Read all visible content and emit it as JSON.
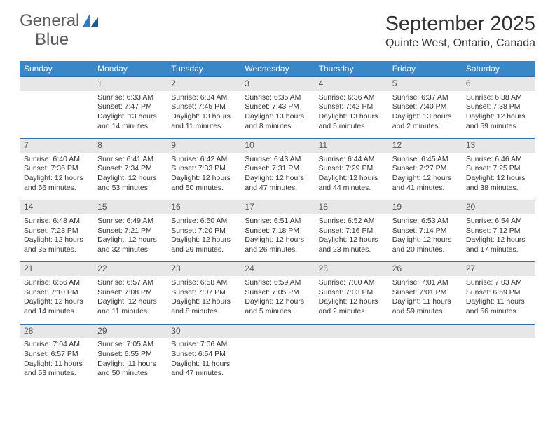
{
  "logo": {
    "word1": "General",
    "word2": "Blue",
    "text_color": "#5b5b5b",
    "accent_color": "#2d7dc0"
  },
  "title": {
    "month": "September 2025",
    "location": "Quinte West, Ontario, Canada"
  },
  "calendar": {
    "header_bg": "#3a87c8",
    "header_text": "#ffffff",
    "daynum_bg": "#e7e7e7",
    "border_color": "#3a6ea5",
    "dow": [
      "Sunday",
      "Monday",
      "Tuesday",
      "Wednesday",
      "Thursday",
      "Friday",
      "Saturday"
    ],
    "weeks": [
      [
        {
          "n": "",
          "sr": "",
          "ss": "",
          "dl": ""
        },
        {
          "n": "1",
          "sr": "Sunrise: 6:33 AM",
          "ss": "Sunset: 7:47 PM",
          "dl": "Daylight: 13 hours and 14 minutes."
        },
        {
          "n": "2",
          "sr": "Sunrise: 6:34 AM",
          "ss": "Sunset: 7:45 PM",
          "dl": "Daylight: 13 hours and 11 minutes."
        },
        {
          "n": "3",
          "sr": "Sunrise: 6:35 AM",
          "ss": "Sunset: 7:43 PM",
          "dl": "Daylight: 13 hours and 8 minutes."
        },
        {
          "n": "4",
          "sr": "Sunrise: 6:36 AM",
          "ss": "Sunset: 7:42 PM",
          "dl": "Daylight: 13 hours and 5 minutes."
        },
        {
          "n": "5",
          "sr": "Sunrise: 6:37 AM",
          "ss": "Sunset: 7:40 PM",
          "dl": "Daylight: 13 hours and 2 minutes."
        },
        {
          "n": "6",
          "sr": "Sunrise: 6:38 AM",
          "ss": "Sunset: 7:38 PM",
          "dl": "Daylight: 12 hours and 59 minutes."
        }
      ],
      [
        {
          "n": "7",
          "sr": "Sunrise: 6:40 AM",
          "ss": "Sunset: 7:36 PM",
          "dl": "Daylight: 12 hours and 56 minutes."
        },
        {
          "n": "8",
          "sr": "Sunrise: 6:41 AM",
          "ss": "Sunset: 7:34 PM",
          "dl": "Daylight: 12 hours and 53 minutes."
        },
        {
          "n": "9",
          "sr": "Sunrise: 6:42 AM",
          "ss": "Sunset: 7:33 PM",
          "dl": "Daylight: 12 hours and 50 minutes."
        },
        {
          "n": "10",
          "sr": "Sunrise: 6:43 AM",
          "ss": "Sunset: 7:31 PM",
          "dl": "Daylight: 12 hours and 47 minutes."
        },
        {
          "n": "11",
          "sr": "Sunrise: 6:44 AM",
          "ss": "Sunset: 7:29 PM",
          "dl": "Daylight: 12 hours and 44 minutes."
        },
        {
          "n": "12",
          "sr": "Sunrise: 6:45 AM",
          "ss": "Sunset: 7:27 PM",
          "dl": "Daylight: 12 hours and 41 minutes."
        },
        {
          "n": "13",
          "sr": "Sunrise: 6:46 AM",
          "ss": "Sunset: 7:25 PM",
          "dl": "Daylight: 12 hours and 38 minutes."
        }
      ],
      [
        {
          "n": "14",
          "sr": "Sunrise: 6:48 AM",
          "ss": "Sunset: 7:23 PM",
          "dl": "Daylight: 12 hours and 35 minutes."
        },
        {
          "n": "15",
          "sr": "Sunrise: 6:49 AM",
          "ss": "Sunset: 7:21 PM",
          "dl": "Daylight: 12 hours and 32 minutes."
        },
        {
          "n": "16",
          "sr": "Sunrise: 6:50 AM",
          "ss": "Sunset: 7:20 PM",
          "dl": "Daylight: 12 hours and 29 minutes."
        },
        {
          "n": "17",
          "sr": "Sunrise: 6:51 AM",
          "ss": "Sunset: 7:18 PM",
          "dl": "Daylight: 12 hours and 26 minutes."
        },
        {
          "n": "18",
          "sr": "Sunrise: 6:52 AM",
          "ss": "Sunset: 7:16 PM",
          "dl": "Daylight: 12 hours and 23 minutes."
        },
        {
          "n": "19",
          "sr": "Sunrise: 6:53 AM",
          "ss": "Sunset: 7:14 PM",
          "dl": "Daylight: 12 hours and 20 minutes."
        },
        {
          "n": "20",
          "sr": "Sunrise: 6:54 AM",
          "ss": "Sunset: 7:12 PM",
          "dl": "Daylight: 12 hours and 17 minutes."
        }
      ],
      [
        {
          "n": "21",
          "sr": "Sunrise: 6:56 AM",
          "ss": "Sunset: 7:10 PM",
          "dl": "Daylight: 12 hours and 14 minutes."
        },
        {
          "n": "22",
          "sr": "Sunrise: 6:57 AM",
          "ss": "Sunset: 7:08 PM",
          "dl": "Daylight: 12 hours and 11 minutes."
        },
        {
          "n": "23",
          "sr": "Sunrise: 6:58 AM",
          "ss": "Sunset: 7:07 PM",
          "dl": "Daylight: 12 hours and 8 minutes."
        },
        {
          "n": "24",
          "sr": "Sunrise: 6:59 AM",
          "ss": "Sunset: 7:05 PM",
          "dl": "Daylight: 12 hours and 5 minutes."
        },
        {
          "n": "25",
          "sr": "Sunrise: 7:00 AM",
          "ss": "Sunset: 7:03 PM",
          "dl": "Daylight: 12 hours and 2 minutes."
        },
        {
          "n": "26",
          "sr": "Sunrise: 7:01 AM",
          "ss": "Sunset: 7:01 PM",
          "dl": "Daylight: 11 hours and 59 minutes."
        },
        {
          "n": "27",
          "sr": "Sunrise: 7:03 AM",
          "ss": "Sunset: 6:59 PM",
          "dl": "Daylight: 11 hours and 56 minutes."
        }
      ],
      [
        {
          "n": "28",
          "sr": "Sunrise: 7:04 AM",
          "ss": "Sunset: 6:57 PM",
          "dl": "Daylight: 11 hours and 53 minutes."
        },
        {
          "n": "29",
          "sr": "Sunrise: 7:05 AM",
          "ss": "Sunset: 6:55 PM",
          "dl": "Daylight: 11 hours and 50 minutes."
        },
        {
          "n": "30",
          "sr": "Sunrise: 7:06 AM",
          "ss": "Sunset: 6:54 PM",
          "dl": "Daylight: 11 hours and 47 minutes."
        },
        {
          "n": "",
          "sr": "",
          "ss": "",
          "dl": ""
        },
        {
          "n": "",
          "sr": "",
          "ss": "",
          "dl": ""
        },
        {
          "n": "",
          "sr": "",
          "ss": "",
          "dl": ""
        },
        {
          "n": "",
          "sr": "",
          "ss": "",
          "dl": ""
        }
      ]
    ]
  }
}
